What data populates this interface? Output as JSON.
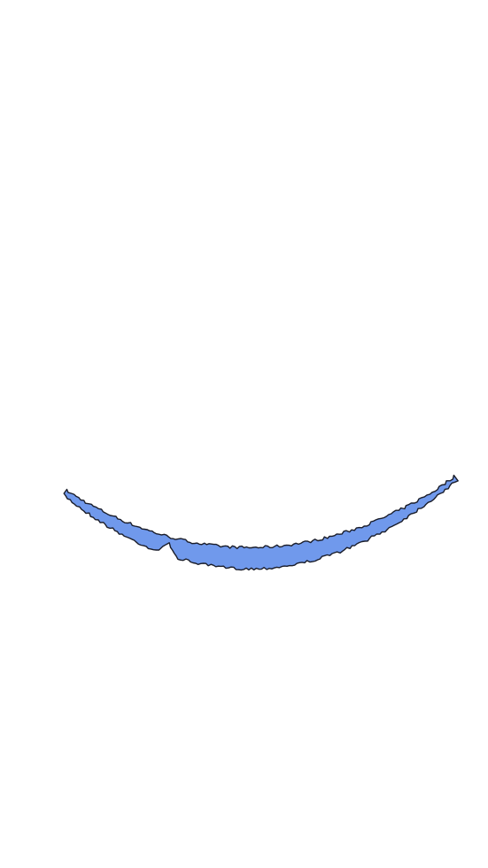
{
  "canvas": {
    "background_color": "#ffffff"
  },
  "stroke_shape": {
    "fill_color": "#7099ec",
    "outline_color": "#1a1d2a",
    "description_icon": "curved-brush-stroke-icon"
  }
}
